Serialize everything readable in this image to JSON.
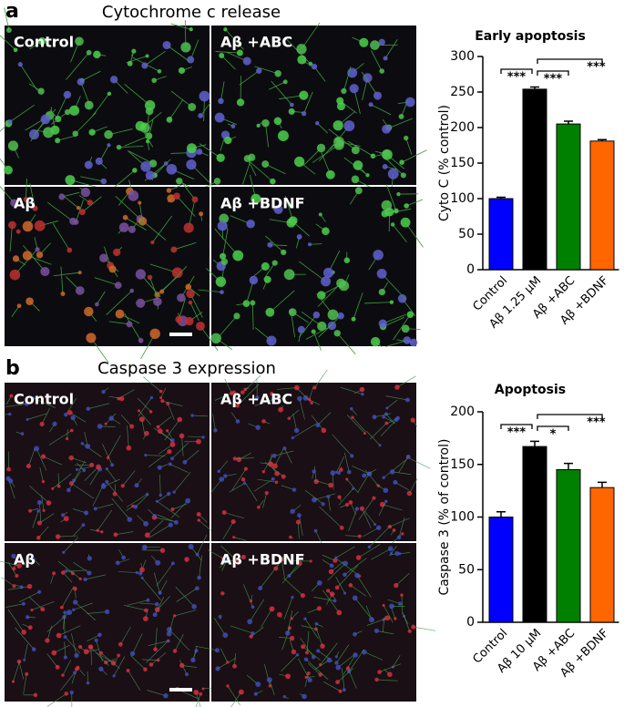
{
  "panels": [
    {
      "label": "a",
      "title": "Cytochrome c release",
      "images": [
        "Control",
        "Aβ +ABC",
        "Aβ",
        "Aβ +BDNF"
      ]
    },
    {
      "label": "b",
      "title": "Caspase 3 expression",
      "images": [
        "Control",
        "Aβ +ABC",
        "Aβ",
        "Aβ +BDNF"
      ]
    }
  ],
  "chart_data": [
    {
      "type": "bar",
      "title": "Early apoptosis",
      "y_label": "Cyto C (% control)",
      "categories": [
        "Control",
        "Aβ 1.25 μM",
        "Aβ +ABC",
        "Aβ +BDNF"
      ],
      "values": [
        100,
        254,
        205,
        181
      ],
      "errors": [
        2,
        3,
        4,
        2
      ],
      "colors": [
        "#0000ff",
        "#000000",
        "#008000",
        "#ff6600"
      ],
      "ylim": [
        0,
        300
      ],
      "yticks": [
        0,
        50,
        100,
        150,
        200,
        250,
        300
      ],
      "annotations": [
        {
          "pair": [
            "Control",
            "Aβ 1.25 μM"
          ],
          "label": "***"
        },
        {
          "pair": [
            "Aβ 1.25 μM",
            "Aβ +ABC"
          ],
          "label": "***"
        },
        {
          "pair": [
            "Aβ 1.25 μM",
            "Aβ +BDNF"
          ],
          "label": "***"
        }
      ]
    },
    {
      "type": "bar",
      "title": "Apoptosis",
      "y_label": "Caspase 3 (% of control)",
      "categories": [
        "Control",
        "Aβ 10 μM",
        "Aβ +ABC",
        "Aβ +BDNF"
      ],
      "values": [
        100,
        167,
        145,
        128
      ],
      "errors": [
        5,
        5,
        6,
        5
      ],
      "colors": [
        "#0000ff",
        "#000000",
        "#008000",
        "#ff6600"
      ],
      "ylim": [
        0,
        200
      ],
      "yticks": [
        0,
        50,
        100,
        150,
        200
      ],
      "annotations": [
        {
          "pair": [
            "Control",
            "Aβ 10 μM"
          ],
          "label": "***"
        },
        {
          "pair": [
            "Aβ 10 μM",
            "Aβ +ABC"
          ],
          "label": "*"
        },
        {
          "pair": [
            "Aβ 10 μM",
            "Aβ +BDNF"
          ],
          "label": "***"
        }
      ]
    }
  ]
}
